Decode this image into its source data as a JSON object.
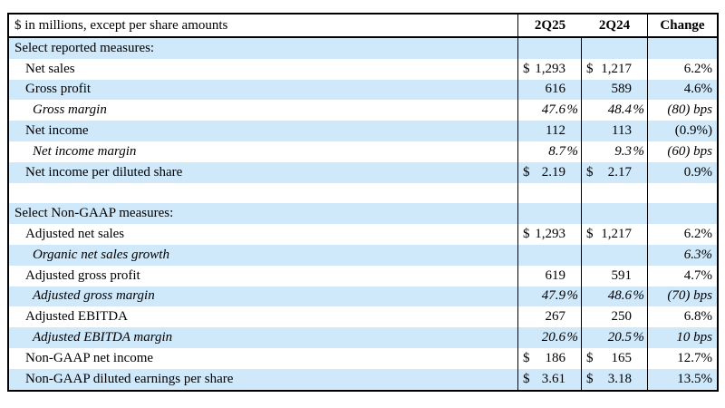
{
  "table": {
    "header": {
      "label": "$ in millions, except per share amounts",
      "col1": "2Q25",
      "col2": "2Q24",
      "col3": "Change"
    },
    "colors": {
      "shade": "#cfe8fa",
      "border": "#000000",
      "background": "#ffffff"
    },
    "rows": [
      {
        "label": "Select reported measures:",
        "type": "section",
        "indent": 0,
        "italic": false,
        "shade": true,
        "c1": [
          "",
          "",
          ""
        ],
        "c2": [
          "",
          "",
          ""
        ],
        "chg": ""
      },
      {
        "label": "Net sales",
        "type": "data",
        "indent": 1,
        "italic": false,
        "shade": false,
        "c1": [
          "$",
          "1,293",
          ""
        ],
        "c2": [
          "$",
          "1,217",
          ""
        ],
        "chg": "6.2%"
      },
      {
        "label": "Gross profit",
        "type": "data",
        "indent": 1,
        "italic": false,
        "shade": true,
        "c1": [
          "",
          "616",
          ""
        ],
        "c2": [
          "",
          "589",
          ""
        ],
        "chg": "4.6%"
      },
      {
        "label": "Gross margin",
        "type": "data",
        "indent": 2,
        "italic": true,
        "shade": false,
        "c1": [
          "",
          "47.6",
          "%"
        ],
        "c2": [
          "",
          "48.4",
          "%"
        ],
        "chg": "(80) bps"
      },
      {
        "label": "Net income",
        "type": "data",
        "indent": 1,
        "italic": false,
        "shade": true,
        "c1": [
          "",
          "112",
          ""
        ],
        "c2": [
          "",
          "113",
          ""
        ],
        "chg": "(0.9%)"
      },
      {
        "label": "Net income margin",
        "type": "data",
        "indent": 2,
        "italic": true,
        "shade": false,
        "c1": [
          "",
          "8.7",
          "%"
        ],
        "c2": [
          "",
          "9.3",
          "%"
        ],
        "chg": "(60) bps"
      },
      {
        "label": "Net income per diluted share",
        "type": "data",
        "indent": 1,
        "italic": false,
        "shade": true,
        "c1": [
          "$",
          "2.19",
          ""
        ],
        "c2": [
          "$",
          "2.17",
          ""
        ],
        "chg": "0.9%"
      },
      {
        "label": "",
        "type": "blank",
        "indent": 0,
        "italic": false,
        "shade": false,
        "c1": [
          "",
          "",
          ""
        ],
        "c2": [
          "",
          "",
          ""
        ],
        "chg": ""
      },
      {
        "label": "Select Non-GAAP measures:",
        "type": "section",
        "indent": 0,
        "italic": false,
        "shade": true,
        "c1": [
          "",
          "",
          ""
        ],
        "c2": [
          "",
          "",
          ""
        ],
        "chg": ""
      },
      {
        "label": "Adjusted net sales",
        "type": "data",
        "indent": 1,
        "italic": false,
        "shade": false,
        "c1": [
          "$",
          "1,293",
          ""
        ],
        "c2": [
          "$",
          "1,217",
          ""
        ],
        "chg": "6.2%"
      },
      {
        "label": "Organic net sales growth",
        "type": "data",
        "indent": 2,
        "italic": true,
        "shade": true,
        "c1": [
          "",
          "",
          ""
        ],
        "c2": [
          "",
          "",
          ""
        ],
        "chg": "6.3%"
      },
      {
        "label": "Adjusted gross profit",
        "type": "data",
        "indent": 1,
        "italic": false,
        "shade": false,
        "c1": [
          "",
          "619",
          ""
        ],
        "c2": [
          "",
          "591",
          ""
        ],
        "chg": "4.7%"
      },
      {
        "label": "Adjusted gross margin",
        "type": "data",
        "indent": 2,
        "italic": true,
        "shade": true,
        "c1": [
          "",
          "47.9",
          "%"
        ],
        "c2": [
          "",
          "48.6",
          "%"
        ],
        "chg": "(70) bps"
      },
      {
        "label": "Adjusted EBITDA",
        "type": "data",
        "indent": 1,
        "italic": false,
        "shade": false,
        "c1": [
          "",
          "267",
          ""
        ],
        "c2": [
          "",
          "250",
          ""
        ],
        "chg": "6.8%"
      },
      {
        "label": "Adjusted EBITDA margin",
        "type": "data",
        "indent": 2,
        "italic": true,
        "shade": true,
        "c1": [
          "",
          "20.6",
          "%"
        ],
        "c2": [
          "",
          "20.5",
          "%"
        ],
        "chg": "10 bps"
      },
      {
        "label": "Non-GAAP net income",
        "type": "data",
        "indent": 1,
        "italic": false,
        "shade": false,
        "c1": [
          "$",
          "186",
          ""
        ],
        "c2": [
          "$",
          "165",
          ""
        ],
        "chg": "12.7%"
      },
      {
        "label": "Non-GAAP diluted earnings per share",
        "type": "data",
        "indent": 1,
        "italic": false,
        "shade": true,
        "c1": [
          "$",
          "3.61",
          ""
        ],
        "c2": [
          "$",
          "3.18",
          ""
        ],
        "chg": "13.5%"
      }
    ]
  }
}
